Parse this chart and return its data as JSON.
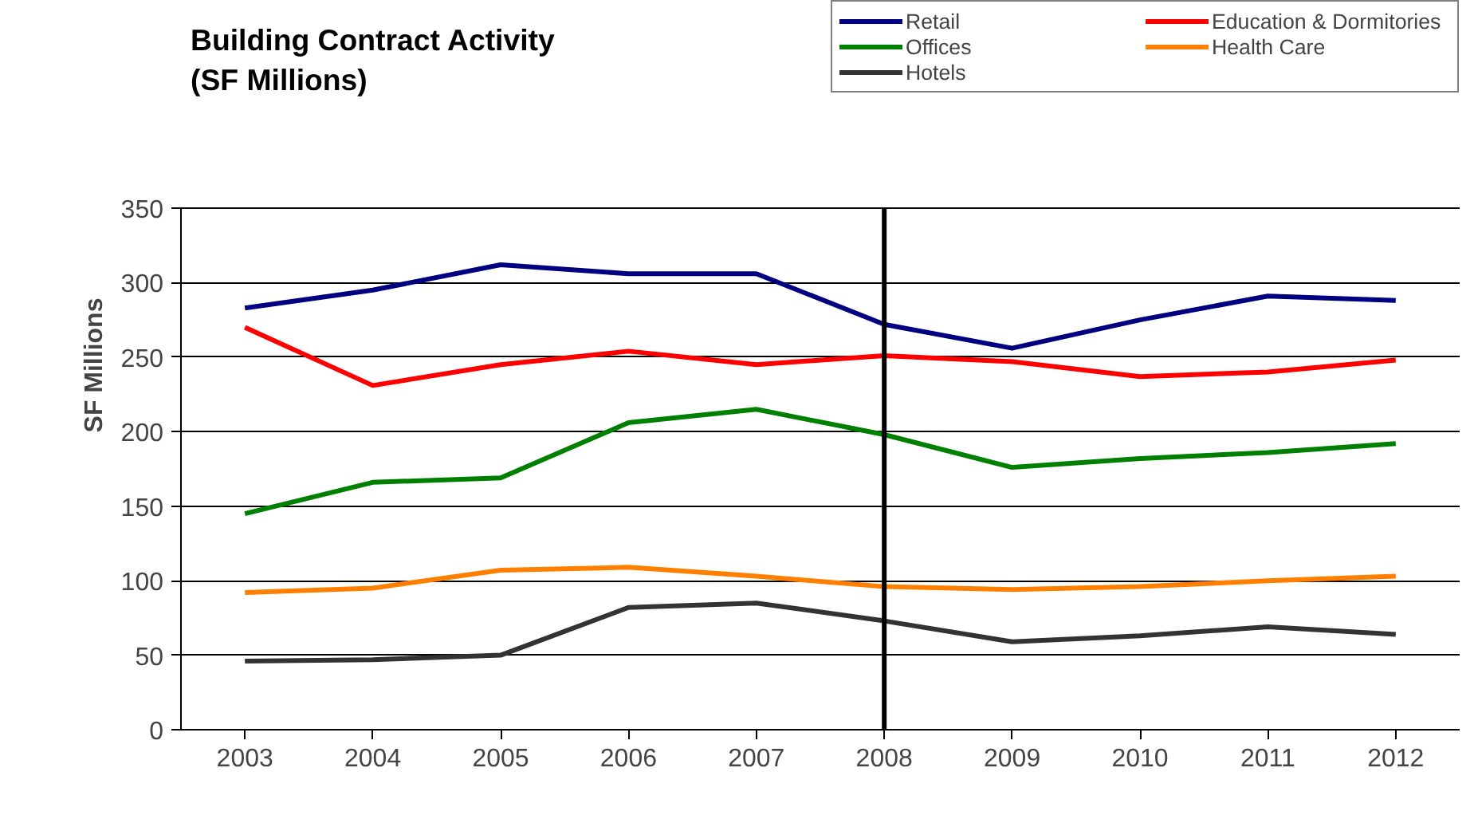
{
  "chart_data": {
    "type": "line",
    "title": "Building Contract Activity\n(SF Millions)",
    "ylabel": "SF Millions",
    "categories": [
      "2003",
      "2004",
      "2005",
      "2006",
      "2007",
      "2008",
      "2009",
      "2010",
      "2011",
      "2012"
    ],
    "series": [
      {
        "name": "Retail",
        "color": "#000080",
        "values": [
          283,
          295,
          312,
          306,
          306,
          272,
          256,
          275,
          291,
          288
        ]
      },
      {
        "name": "Offices",
        "color": "#008000",
        "values": [
          145,
          166,
          169,
          206,
          215,
          198,
          176,
          182,
          186,
          192
        ]
      },
      {
        "name": "Hotels",
        "color": "#333333",
        "values": [
          46,
          47,
          50,
          82,
          85,
          73,
          59,
          63,
          69,
          64
        ]
      },
      {
        "name": "Education & Dormitories",
        "color": "#ff0000",
        "values": [
          270,
          231,
          245,
          254,
          245,
          251,
          247,
          237,
          240,
          248
        ]
      },
      {
        "name": "Health Care",
        "color": "#ff8000",
        "values": [
          92,
          95,
          107,
          109,
          103,
          96,
          94,
          96,
          100,
          103
        ]
      }
    ],
    "ylim": [
      0,
      350
    ],
    "yticks": [
      0,
      50,
      100,
      150,
      200,
      250,
      300,
      350
    ],
    "ref_lines": [
      {
        "axis": "x",
        "value": "2008",
        "color": "#000000"
      }
    ],
    "grid": "y",
    "legend": "top right",
    "marker": "none",
    "line_style": "solid"
  }
}
